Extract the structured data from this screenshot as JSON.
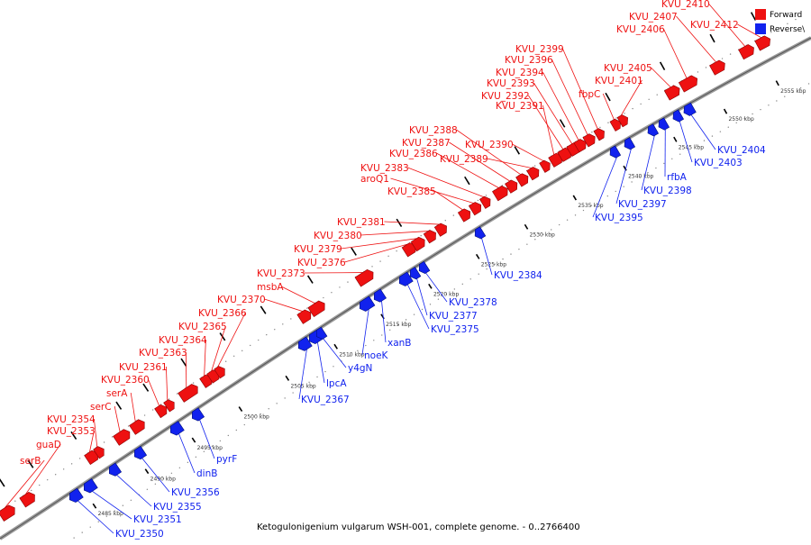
{
  "caption": "Ketogulonigenium vulgarum WSH-001, complete genome. - 0..2766400",
  "legend": [
    {
      "label": "Forward",
      "color": "#ee1111"
    },
    {
      "label": "Reverse\\",
      "color": "#1122ee"
    }
  ],
  "colors": {
    "forward": "#ee1111",
    "reverse": "#1122ee",
    "backbone": "#8a8a8a"
  },
  "kbp_ticks": [
    "2485 kbp",
    "2490 kbp",
    "2495 kbp",
    "2500 kbp",
    "2505 kbp",
    "2510 kbp",
    "2515 kbp",
    "2520 kbp",
    "2525 kbp",
    "2530 kbp",
    "2535 kbp",
    "2540 kbp",
    "2545 kbp",
    "2550 kbp",
    "2555 kbp"
  ],
  "forward_labels": [
    "serB",
    "guaD",
    "KVU_2353",
    "KVU_2354",
    "serC",
    "serA",
    "KVU_2360",
    "KVU_2361",
    "KVU_2363",
    "KVU_2364",
    "KVU_2365",
    "KVU_2366",
    "KVU_2370",
    "msbA",
    "KVU_2373",
    "KVU_2376",
    "KVU_2379",
    "KVU_2380",
    "KVU_2381",
    "KVU_2385",
    "aroQ1",
    "KVU_2383",
    "KVU_2386",
    "KVU_2387",
    "KVU_2388",
    "KVU_2389",
    "KVU_2390",
    "KVU_2391",
    "KVU_2392",
    "KVU_2393",
    "KVU_2394",
    "KVU_2396",
    "KVU_2399",
    "fbpC",
    "KVU_2401",
    "KVU_2405",
    "KVU_2406",
    "KVU_2407",
    "KVU_2410",
    "KVU_2412"
  ],
  "reverse_labels": [
    "KVU_2350",
    "KVU_2351",
    "KVU_2355",
    "KVU_2356",
    "dinB",
    "pyrF",
    "KVU_2367",
    "lpcA",
    "y4gN",
    "noeK",
    "xanB",
    "KVU_2375",
    "KVU_2377",
    "KVU_2378",
    "KVU_2384",
    "KVU_2395",
    "KVU_2397",
    "KVU_2398",
    "rfbA",
    "KVU_2403",
    "KVU_2404"
  ]
}
